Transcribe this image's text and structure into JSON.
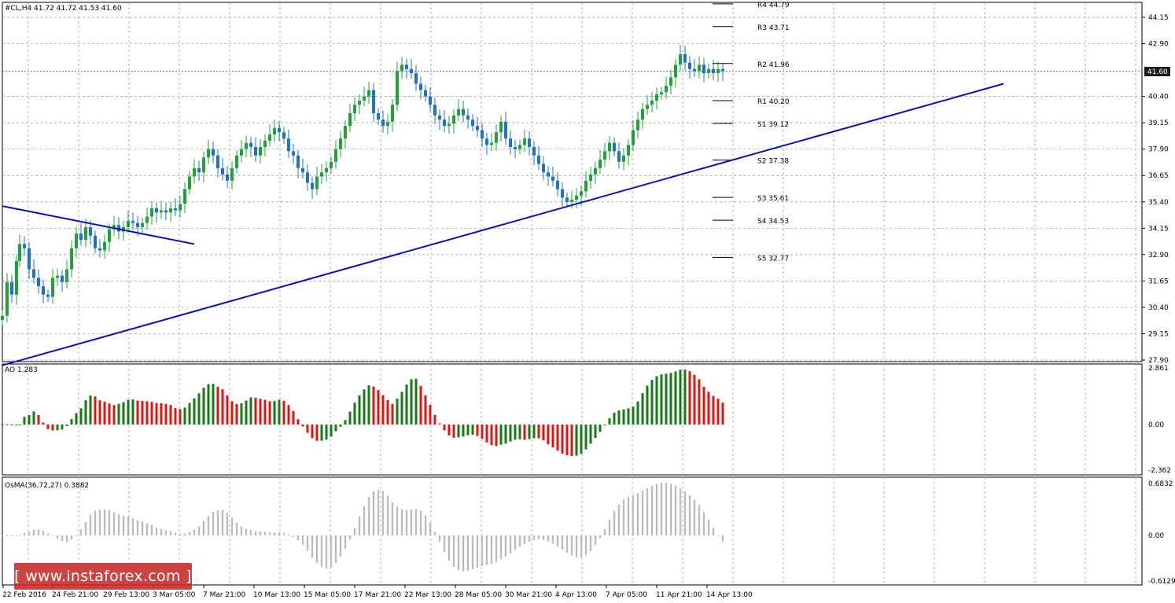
{
  "main_panel": {
    "header": "#CL,H4  41.72 41.72 41.53 41.60",
    "current_price": "41.60",
    "yaxis_labels": [
      "44.15",
      "42.90",
      "40.40",
      "39.15",
      "37.90",
      "36.65",
      "35.40",
      "34.15",
      "32.90",
      "31.65",
      "30.40",
      "29.15",
      "27.90"
    ],
    "pivot_levels": [
      {
        "label": "R4 44.79",
        "value": 44.79
      },
      {
        "label": "R3 43.71",
        "value": 43.71
      },
      {
        "label": "R2 41.96",
        "value": 41.96
      },
      {
        "label": "R1 40.20",
        "value": 40.2
      },
      {
        "label": "S1 39.12",
        "value": 39.12
      },
      {
        "label": "S2 37.38",
        "value": 37.38
      },
      {
        "label": "S3 35.61",
        "value": 35.61
      },
      {
        "label": "S4 34.53",
        "value": 34.53
      },
      {
        "label": "S5 32.77",
        "value": 32.77
      }
    ]
  },
  "ao_panel": {
    "header": "AO 1.283",
    "yaxis_labels": [
      "2.861",
      "0.00",
      "-2.362"
    ]
  },
  "osma_panel": {
    "header": "OsMA(36,72,27) 0.3882",
    "yaxis_labels": [
      "0.6832",
      "0.00",
      "-0.6129"
    ]
  },
  "xaxis_labels": [
    "22 Feb 2016",
    "24 Feb 21:00",
    "29 Feb 13:00",
    "3 Mar 05:00",
    "7 Mar 21:00",
    "10 Mar 13:00",
    "15 Mar 05:00",
    "17 Mar 21:00",
    "22 Mar 13:00",
    "28 Mar 05:00",
    "30 Mar 21:00",
    "4 Apr 13:00",
    "7 Apr 05:00",
    "11 Apr 21:00",
    "14 Apr 13:00"
  ],
  "watermark": "[ www.instaforex.com ]",
  "colors": {
    "bull": "#22a33a",
    "bear": "#1f72c9",
    "ao_up": "#167a16",
    "ao_down": "#e0140e",
    "osma": "#bdbdbd",
    "trendline": "#0a12b8",
    "grid": "#9a9a9a"
  },
  "chart_data": {
    "type": "candlestick",
    "symbol": "#CL",
    "timeframe": "H4",
    "ylim": [
      27.9,
      45.4
    ],
    "close_path": [
      [
        0,
        30.0
      ],
      [
        6,
        31.6
      ],
      [
        12,
        31.0
      ],
      [
        18,
        32.6
      ],
      [
        22,
        33.4
      ],
      [
        28,
        33.2
      ],
      [
        34,
        32.2
      ],
      [
        40,
        31.8
      ],
      [
        46,
        31.4
      ],
      [
        52,
        31.0
      ],
      [
        58,
        30.9
      ],
      [
        64,
        31.8
      ],
      [
        70,
        31.9
      ],
      [
        76,
        31.6
      ],
      [
        82,
        32.2
      ],
      [
        88,
        33.2
      ],
      [
        94,
        33.9
      ],
      [
        100,
        33.6
      ],
      [
        106,
        34.2
      ],
      [
        112,
        33.8
      ],
      [
        118,
        33.2
      ],
      [
        124,
        33.1
      ],
      [
        130,
        33.5
      ],
      [
        136,
        34.1
      ],
      [
        142,
        34.3
      ],
      [
        148,
        34.0
      ],
      [
        154,
        34.2
      ],
      [
        160,
        34.5
      ],
      [
        166,
        34.4
      ],
      [
        172,
        34.2
      ],
      [
        178,
        34.4
      ],
      [
        184,
        34.7
      ],
      [
        190,
        35.1
      ],
      [
        196,
        34.9
      ],
      [
        202,
        35.0
      ],
      [
        208,
        34.9
      ],
      [
        214,
        35.1
      ],
      [
        220,
        35.0
      ],
      [
        226,
        35.3
      ],
      [
        232,
        36.0
      ],
      [
        238,
        36.6
      ],
      [
        244,
        37.0
      ],
      [
        250,
        36.8
      ],
      [
        256,
        37.5
      ],
      [
        262,
        37.9
      ],
      [
        268,
        37.6
      ],
      [
        274,
        37.0
      ],
      [
        280,
        36.7
      ],
      [
        286,
        36.4
      ],
      [
        292,
        37.0
      ],
      [
        298,
        37.6
      ],
      [
        304,
        37.9
      ],
      [
        310,
        38.2
      ],
      [
        316,
        38.0
      ],
      [
        322,
        37.6
      ],
      [
        328,
        38.0
      ],
      [
        334,
        38.3
      ],
      [
        340,
        38.6
      ],
      [
        346,
        38.9
      ],
      [
        352,
        38.7
      ],
      [
        358,
        38.4
      ],
      [
        364,
        37.8
      ],
      [
        370,
        37.6
      ],
      [
        376,
        37.0
      ],
      [
        382,
        36.8
      ],
      [
        388,
        36.3
      ],
      [
        394,
        36.0
      ],
      [
        400,
        36.6
      ],
      [
        406,
        36.8
      ],
      [
        412,
        37.0
      ],
      [
        418,
        37.3
      ],
      [
        424,
        37.9
      ],
      [
        430,
        38.4
      ],
      [
        436,
        39.0
      ],
      [
        442,
        39.6
      ],
      [
        448,
        40.0
      ],
      [
        454,
        40.2
      ],
      [
        460,
        40.4
      ],
      [
        466,
        40.7
      ],
      [
        472,
        39.6
      ],
      [
        478,
        39.3
      ],
      [
        484,
        39.0
      ],
      [
        490,
        39.2
      ],
      [
        496,
        40.0
      ],
      [
        502,
        41.6
      ],
      [
        508,
        41.9
      ],
      [
        514,
        41.7
      ],
      [
        520,
        41.5
      ],
      [
        526,
        41.0
      ],
      [
        532,
        40.7
      ],
      [
        538,
        40.4
      ],
      [
        544,
        40.0
      ],
      [
        550,
        39.5
      ],
      [
        556,
        39.3
      ],
      [
        562,
        39.0
      ],
      [
        568,
        39.1
      ],
      [
        574,
        39.5
      ],
      [
        580,
        39.8
      ],
      [
        586,
        39.5
      ],
      [
        592,
        39.3
      ],
      [
        598,
        39.0
      ],
      [
        604,
        38.8
      ],
      [
        610,
        38.4
      ],
      [
        616,
        38.1
      ],
      [
        622,
        38.2
      ],
      [
        628,
        38.7
      ],
      [
        634,
        39.2
      ],
      [
        640,
        38.4
      ],
      [
        646,
        38.0
      ],
      [
        652,
        37.9
      ],
      [
        658,
        38.1
      ],
      [
        664,
        38.4
      ],
      [
        670,
        38.0
      ],
      [
        676,
        37.6
      ],
      [
        682,
        37.2
      ],
      [
        688,
        36.8
      ],
      [
        694,
        36.6
      ],
      [
        700,
        36.4
      ],
      [
        706,
        36.0
      ],
      [
        712,
        35.6
      ],
      [
        718,
        35.4
      ],
      [
        724,
        35.5
      ],
      [
        730,
        35.7
      ],
      [
        736,
        35.9
      ],
      [
        742,
        36.4
      ],
      [
        748,
        36.7
      ],
      [
        754,
        37.0
      ],
      [
        760,
        37.4
      ],
      [
        766,
        37.8
      ],
      [
        772,
        38.2
      ],
      [
        778,
        37.8
      ],
      [
        784,
        37.3
      ],
      [
        790,
        37.6
      ],
      [
        796,
        38.1
      ],
      [
        802,
        38.8
      ],
      [
        808,
        39.3
      ],
      [
        814,
        39.8
      ],
      [
        820,
        40.0
      ],
      [
        826,
        40.2
      ],
      [
        832,
        40.5
      ],
      [
        838,
        40.6
      ],
      [
        844,
        40.9
      ],
      [
        850,
        41.3
      ],
      [
        856,
        41.9
      ],
      [
        862,
        42.4
      ],
      [
        868,
        42.0
      ],
      [
        874,
        41.7
      ],
      [
        880,
        41.6
      ],
      [
        886,
        41.9
      ],
      [
        892,
        41.5
      ],
      [
        898,
        41.7
      ],
      [
        904,
        41.5
      ],
      [
        910,
        41.7
      ],
      [
        916,
        41.6
      ]
    ],
    "trendlines": [
      {
        "from": [
          "22 Feb 2016",
          35.2
        ],
        "to": [
          "3 Mar 05:00",
          33.4
        ]
      },
      {
        "from": [
          "22 Feb 2016",
          27.9
        ],
        "to": [
          "after 14 Apr 13:00",
          41.0
        ]
      }
    ],
    "indicators": [
      "AO",
      "OsMA(36,72,27)"
    ]
  }
}
